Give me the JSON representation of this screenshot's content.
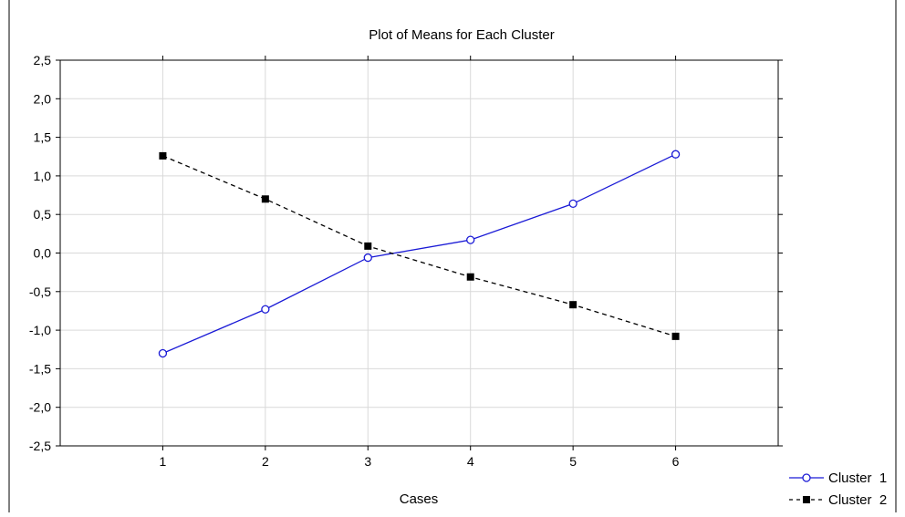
{
  "chart_data": {
    "type": "line",
    "title": "Plot of Means for Each Cluster",
    "xlabel": "Cases",
    "ylabel": "",
    "categories": [
      "1",
      "2",
      "3",
      "4",
      "5",
      "6"
    ],
    "xlim": [
      0,
      7
    ],
    "ylim": [
      -2.5,
      2.5
    ],
    "yticks": [
      2.5,
      2.0,
      1.5,
      1.0,
      0.5,
      0.0,
      -0.5,
      -1.0,
      -1.5,
      -2.0,
      -2.5
    ],
    "ytick_labels": [
      "2,5",
      "2,0",
      "1,5",
      "1,0",
      "0,5",
      "0,0",
      "-0,5",
      "-1,0",
      "-1,5",
      "-2,0",
      "-2,5"
    ],
    "grid": true,
    "legend_position": "bottom-right, outside plot",
    "series": [
      {
        "name": "Cluster  1",
        "values": [
          -1.3,
          -0.73,
          -0.06,
          0.17,
          0.64,
          1.28
        ],
        "color": "#1a1ad6",
        "line_style": "solid",
        "marker": "open-circle"
      },
      {
        "name": "Cluster  2",
        "values": [
          1.26,
          0.7,
          0.09,
          -0.31,
          -0.67,
          -1.08
        ],
        "color": "#000000",
        "line_style": "dashed",
        "marker": "filled-square"
      }
    ]
  }
}
